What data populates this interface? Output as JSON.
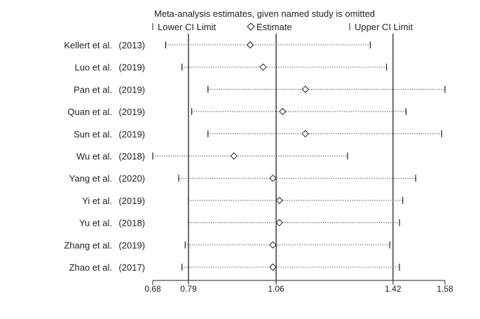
{
  "chart_data": {
    "type": "forest",
    "title": "Meta-analysis estimates, given named study is omitted",
    "legend": {
      "lower": "Lower CI Limit",
      "estimate": "Estimate",
      "upper": "Upper CI Limit"
    },
    "xlim": [
      0.68,
      1.58
    ],
    "x_ticks": [
      0.68,
      0.79,
      1.06,
      1.42,
      1.58
    ],
    "x_tick_labels": [
      "0.68",
      "0.79",
      "1.06",
      "1.42",
      "1.58"
    ],
    "reference_lines": [
      0.79,
      1.06,
      1.42
    ],
    "studies": [
      {
        "name": "Kellert et al.",
        "year": "(2013)",
        "lower": 0.72,
        "estimate": 0.98,
        "upper": 1.35
      },
      {
        "name": "Luo et al.",
        "year": "(2019)",
        "lower": 0.77,
        "estimate": 1.02,
        "upper": 1.4
      },
      {
        "name": "Pan et al.",
        "year": "(2019)",
        "lower": 0.85,
        "estimate": 1.15,
        "upper": 1.58
      },
      {
        "name": "Quan et al.",
        "year": "(2019)",
        "lower": 0.8,
        "estimate": 1.08,
        "upper": 1.46
      },
      {
        "name": "Sun et al.",
        "year": "(2019)",
        "lower": 0.85,
        "estimate": 1.15,
        "upper": 1.57
      },
      {
        "name": "Wu et al.",
        "year": "(2018)",
        "lower": 0.68,
        "estimate": 0.93,
        "upper": 1.28
      },
      {
        "name": "Yang et al.",
        "year": "(2020)",
        "lower": 0.76,
        "estimate": 1.05,
        "upper": 1.49
      },
      {
        "name": "Yi et al.",
        "year": "(2019)",
        "lower": 0.79,
        "estimate": 1.07,
        "upper": 1.45
      },
      {
        "name": "Yu et al.",
        "year": "(2018)",
        "lower": 0.79,
        "estimate": 1.07,
        "upper": 1.44
      },
      {
        "name": "Zhang et al.",
        "year": "(2019)",
        "lower": 0.78,
        "estimate": 1.05,
        "upper": 1.41
      },
      {
        "name": "Zhao et al.",
        "year": "(2017)",
        "lower": 0.77,
        "estimate": 1.05,
        "upper": 1.44
      }
    ]
  }
}
